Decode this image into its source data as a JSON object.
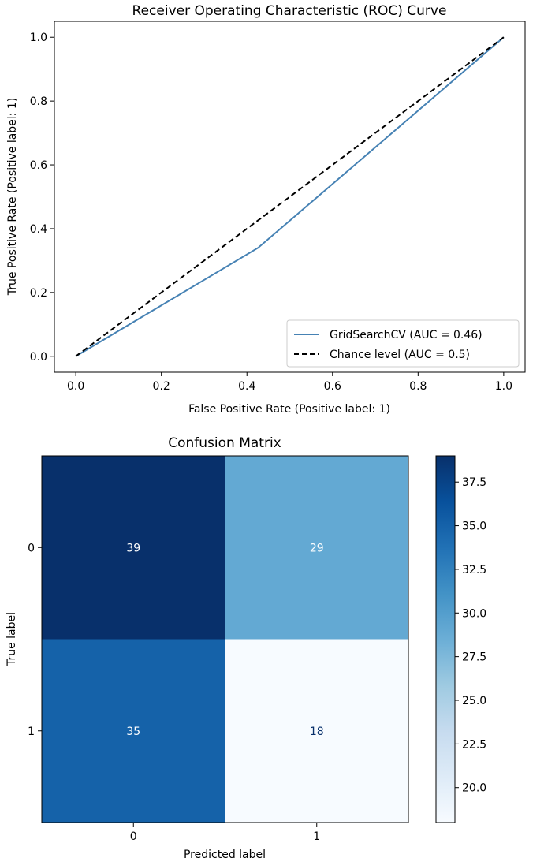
{
  "chart_data": [
    {
      "type": "line",
      "title": "Receiver Operating Characteristic (ROC) Curve",
      "xlabel": "False Positive Rate (Positive label: 1)",
      "ylabel": "True Positive Rate (Positive label: 1)",
      "xlim": [
        -0.05,
        1.05
      ],
      "ylim": [
        -0.05,
        1.05
      ],
      "xticks": [
        0.0,
        0.2,
        0.4,
        0.6,
        0.8,
        1.0
      ],
      "yticks": [
        0.0,
        0.2,
        0.4,
        0.6,
        0.8,
        1.0
      ],
      "xtick_labels": [
        "0.0",
        "0.2",
        "0.4",
        "0.6",
        "0.8",
        "1.0"
      ],
      "ytick_labels": [
        "0.0",
        "0.2",
        "0.4",
        "0.6",
        "0.8",
        "1.0"
      ],
      "grid": false,
      "legend_position": "lower-right",
      "series": [
        {
          "name": "GridSearchCV (AUC = 0.46)",
          "x": [
            0.0,
            0.426,
            1.0
          ],
          "y": [
            0.0,
            0.34,
            1.0
          ],
          "color": "#4682b4",
          "style": "solid"
        },
        {
          "name": "Chance level (AUC = 0.5)",
          "x": [
            0.0,
            1.0
          ],
          "y": [
            0.0,
            1.0
          ],
          "color": "#000000",
          "style": "dashed"
        }
      ]
    },
    {
      "type": "heatmap",
      "title": "Confusion Matrix",
      "xlabel": "Predicted label",
      "ylabel": "True label",
      "x_categories": [
        "0",
        "1"
      ],
      "y_categories": [
        "0",
        "1"
      ],
      "values": [
        [
          39,
          29
        ],
        [
          35,
          18
        ]
      ],
      "colormap": "Blues",
      "colorbar": {
        "min": 18,
        "max": 39,
        "ticks": [
          20.0,
          22.5,
          25.0,
          27.5,
          30.0,
          32.5,
          35.0,
          37.5
        ],
        "tick_labels": [
          "20.0",
          "22.5",
          "25.0",
          "27.5",
          "30.0",
          "32.5",
          "35.0",
          "37.5"
        ]
      }
    }
  ]
}
